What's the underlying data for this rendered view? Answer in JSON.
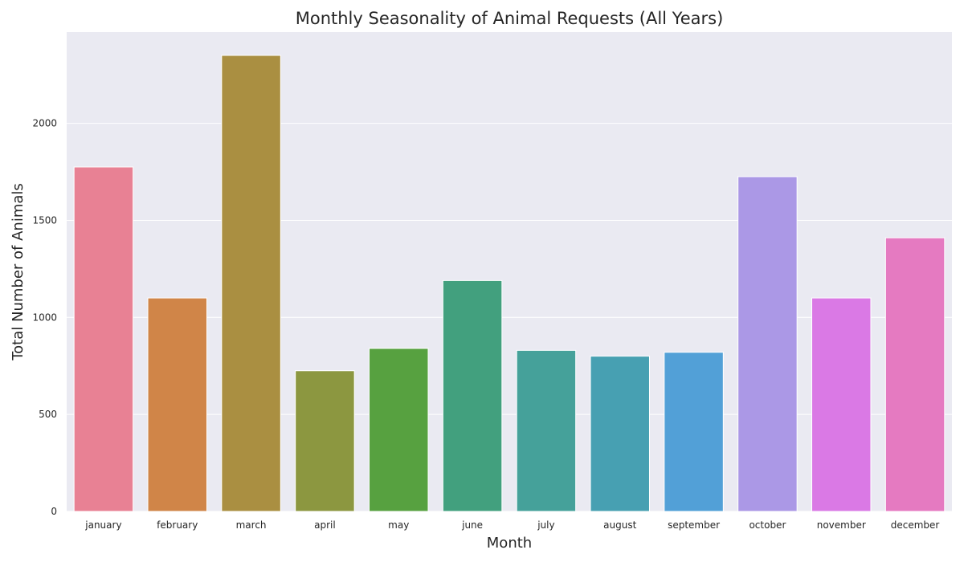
{
  "chart_data": {
    "type": "bar",
    "title": "Monthly Seasonality of Animal Requests (All Years)",
    "xlabel": "Month",
    "ylabel": "Total Number of Animals",
    "categories": [
      "january",
      "february",
      "march",
      "april",
      "may",
      "june",
      "july",
      "august",
      "september",
      "october",
      "november",
      "december"
    ],
    "values": [
      1775,
      1100,
      2350,
      725,
      840,
      1190,
      830,
      800,
      820,
      1725,
      1100,
      1410
    ],
    "colors": [
      "#e88194",
      "#d08548",
      "#aa8f41",
      "#8c9740",
      "#57a140",
      "#42a07e",
      "#45a19a",
      "#47a0b2",
      "#52a0d7",
      "#ab98e6",
      "#da79e5",
      "#e57ac1"
    ],
    "ylim": [
      0,
      2470
    ],
    "yticks": [
      0,
      500,
      1000,
      1500,
      2000
    ],
    "grid": true,
    "background": "#eaeaf2"
  }
}
